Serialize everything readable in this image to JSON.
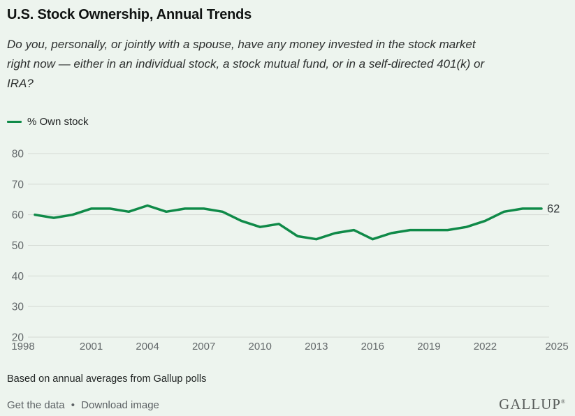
{
  "header": {
    "title": "U.S. Stock Ownership, Annual Trends",
    "subtitle_lines": [
      "Do you, personally, or jointly with a spouse, have any money invested in the stock market",
      "right now — either in an individual stock, a stock mutual fund, or in a self-directed 401(k) or",
      "IRA?"
    ]
  },
  "chart_data": {
    "type": "line",
    "title": "U.S. Stock Ownership, Annual Trends",
    "legend": "% Own stock",
    "legend_position": "top-left",
    "grid": true,
    "x": [
      1998,
      1999,
      2000,
      2001,
      2002,
      2003,
      2004,
      2005,
      2006,
      2007,
      2008,
      2009,
      2010,
      2011,
      2012,
      2013,
      2014,
      2015,
      2016,
      2017,
      2018,
      2019,
      2020,
      2021,
      2022,
      2023,
      2024,
      2025
    ],
    "series": [
      {
        "name": "% Own stock",
        "values": [
          60,
          59,
          60,
          62,
          62,
          61,
          63,
          61,
          62,
          62,
          61,
          58,
          56,
          57,
          53,
          52,
          54,
          55,
          52,
          54,
          55,
          55,
          55,
          56,
          58,
          61,
          62,
          62
        ]
      }
    ],
    "xticks": [
      1998,
      2001,
      2004,
      2007,
      2010,
      2013,
      2016,
      2019,
      2022,
      2025
    ],
    "yticks": [
      20,
      30,
      40,
      50,
      60,
      70,
      80
    ],
    "xlim": [
      1998,
      2025
    ],
    "ylim": [
      20,
      80
    ],
    "end_label": "62",
    "line_color": "#0f8a48",
    "grid_color": "#d5dad4",
    "axis_text_color": "#63686a",
    "end_label_color": "#33383a"
  },
  "footer": {
    "source": "Based on annual averages from Gallup polls",
    "links": [
      "Get the data",
      "Download image"
    ],
    "separator": "•",
    "logo": "GALLUP",
    "logo_mark": "®"
  },
  "colors": {
    "background": "#edf4ee"
  }
}
